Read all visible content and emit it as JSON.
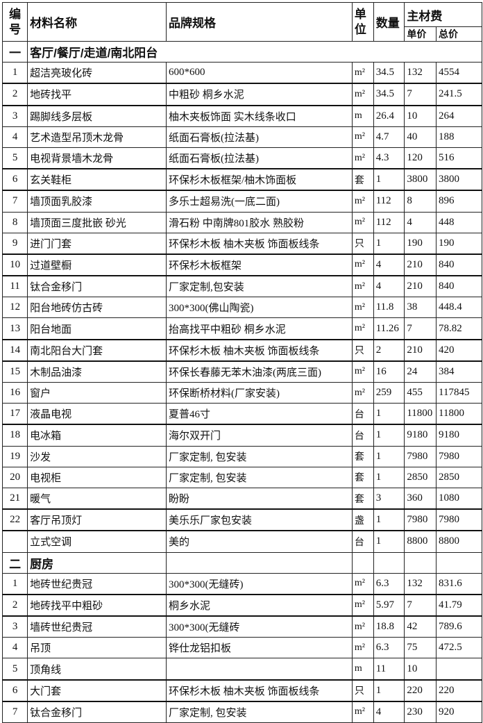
{
  "header": {
    "no": "编号",
    "name": "材料名称",
    "spec": "品牌规格",
    "unit": "单位",
    "qty": "数量",
    "main_cost": "主材费",
    "unit_price": "单价",
    "total_price": "总价"
  },
  "sections": [
    {
      "index": "一",
      "title": "客厅/餐厅/走道/南北阳台",
      "rows": [
        [
          "1",
          "超洁亮玻化砖",
          "600*600",
          "m²",
          "34.5",
          "132",
          "4554"
        ],
        [
          "2",
          "地砖找平",
          "中粗砂  桐乡水泥",
          "m²",
          "34.5",
          "7",
          "241.5"
        ],
        [
          "3",
          "踢脚线多层板",
          "柚木夹板饰面  实木线条收口",
          "m",
          "26.4",
          "10",
          "264"
        ],
        [
          "4",
          "艺术造型吊顶木龙骨",
          "纸面石膏板(拉法基)",
          "m²",
          "4.7",
          "40",
          "188"
        ],
        [
          "5",
          "电视背景墙木龙骨",
          "纸面石膏板(拉法基)",
          "m²",
          "4.3",
          "120",
          "516"
        ],
        [
          "6",
          "玄关鞋柜",
          "环保杉木板框架/柚木饰面板",
          "套",
          "1",
          "3800",
          "3800"
        ],
        [
          "7",
          "墙顶面乳胶漆",
          "多乐士超易洗(一底二面)",
          "m²",
          "112",
          "8",
          "896"
        ],
        [
          "8",
          "墙顶面三度批嵌  砂光",
          "滑石粉  中南牌801胶水  熟胶粉",
          "m²",
          "112",
          "4",
          "448"
        ],
        [
          "9",
          "进门门套",
          "环保杉木板  柚木夹板  饰面板线条",
          "只",
          "1",
          "190",
          "190"
        ],
        [
          "10",
          "过道壁橱",
          "环保杉木板框架",
          "m²",
          "4",
          "210",
          "840"
        ],
        [
          "11",
          "钛合金移门",
          "厂家定制,包安装",
          "m²",
          "4",
          "210",
          "840"
        ],
        [
          "12",
          "阳台地砖仿古砖",
          "300*300(佛山陶瓷)",
          "m²",
          "11.8",
          "38",
          "448.4"
        ],
        [
          "13",
          "阳台地面",
          "抬高找平中粗砂 桐乡水泥",
          "m²",
          "11.26",
          "7",
          "78.82"
        ],
        [
          "14",
          "南北阳台大门套",
          "环保杉木板 柚木夹板 饰面板线条",
          "只",
          "2",
          "210",
          "420"
        ],
        [
          "15",
          "木制品油漆",
          "环保长春藤无苯木油漆(两底三面)",
          "m²",
          "16",
          "24",
          "384"
        ],
        [
          "16",
          "窗户",
          "环保断桥材料(厂家安装)",
          "m²",
          "259",
          "455",
          "117845"
        ],
        [
          "17",
          "液晶电视",
          "夏普46寸",
          "台",
          "1",
          "11800",
          "11800"
        ],
        [
          "18",
          "电冰箱",
          "海尔双开门",
          "台",
          "1",
          "9180",
          "9180"
        ],
        [
          "19",
          "沙发",
          "厂家定制, 包安装",
          "套",
          "1",
          "7980",
          "7980"
        ],
        [
          "20",
          "电视柜",
          "厂家定制, 包安装",
          "套",
          "1",
          "2850",
          "2850"
        ],
        [
          "21",
          "暖气",
          "盼盼",
          "套",
          "3",
          "360",
          "1080"
        ],
        [
          "22",
          "客厅吊顶灯",
          "美乐乐厂家包安装",
          "盏",
          "1",
          "7980",
          "7980"
        ],
        [
          "",
          "立式空调",
          "美的",
          "台",
          "1",
          "8800",
          "8800"
        ]
      ]
    },
    {
      "index": "二",
      "title": "厨房",
      "rows": [
        [
          "1",
          "地砖世纪贵冠",
          "300*300(无缝砖)",
          "m²",
          "6.3",
          "132",
          "831.6"
        ],
        [
          "2",
          "地砖找平中粗砂",
          "桐乡水泥",
          "m²",
          "5.97",
          "7",
          "41.79"
        ],
        [
          "3",
          "墙砖世纪贵冠",
          "300*300(无缝砖",
          "m²",
          "18.8",
          "42",
          "789.6"
        ],
        [
          "4",
          "吊顶",
          "铧仕龙铝扣板",
          "m²",
          "6.3",
          "75",
          "472.5"
        ],
        [
          "5",
          "顶角线",
          "",
          "m",
          "11",
          "10",
          ""
        ],
        [
          "6",
          "大门套",
          "环保杉木板  柚木夹板  饰面板线条",
          "只",
          "1",
          "220",
          "220"
        ],
        [
          "7",
          "钛合金移门",
          "厂家定制, 包安装",
          "m²",
          "4",
          "230",
          "920"
        ]
      ]
    }
  ]
}
